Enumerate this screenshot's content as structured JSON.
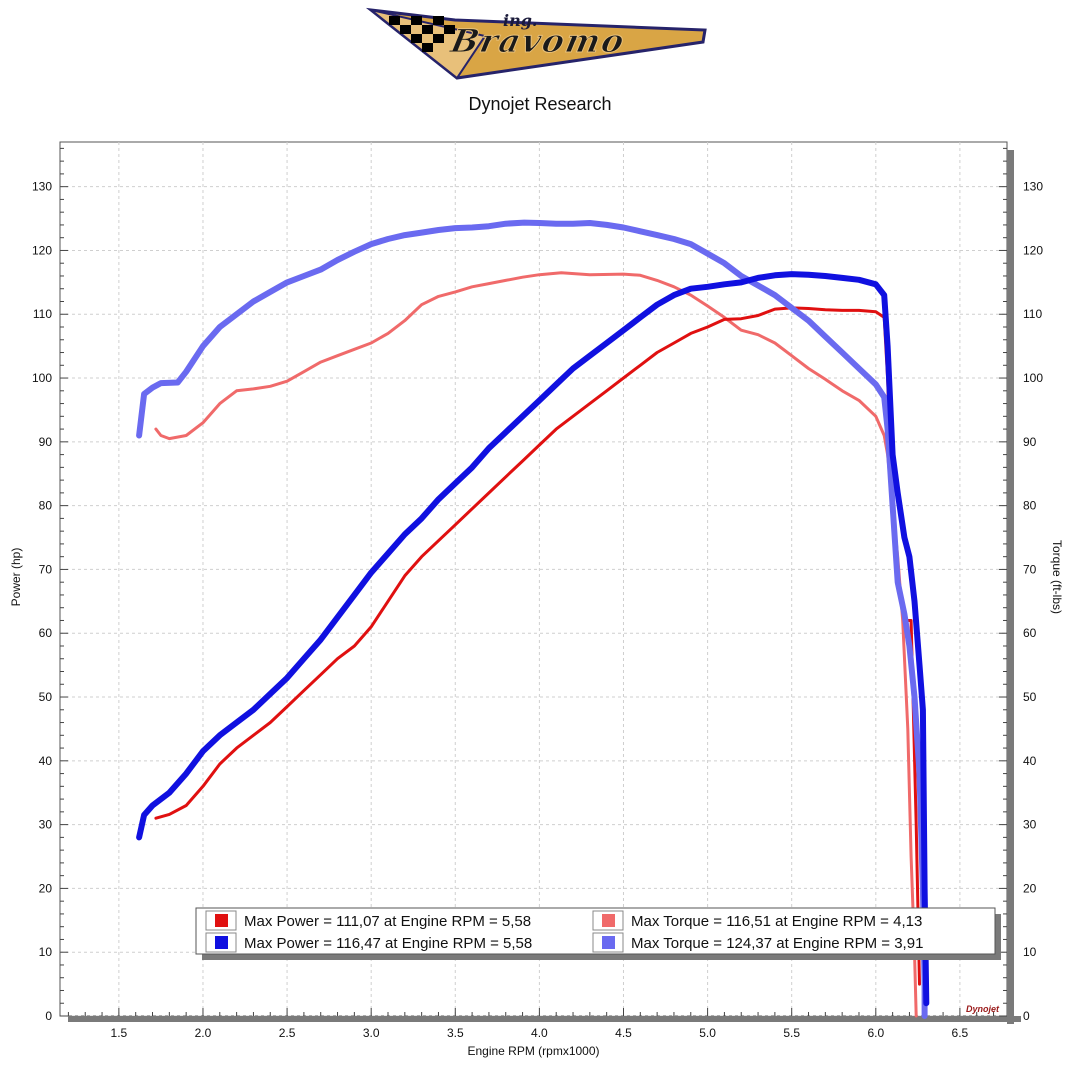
{
  "header": {
    "logo_small": "ing.",
    "logo_main": "Bravomo",
    "title": "Dynojet Research"
  },
  "chart_data": {
    "type": "line",
    "xlabel": "Engine RPM (rpmx1000)",
    "ylabel_left": "Power (hp)",
    "ylabel_right": "Torque (ft-lbs)",
    "xlim": [
      1.15,
      6.78
    ],
    "ylim": [
      0,
      137
    ],
    "xticks": [
      "1.5",
      "2.0",
      "2.5",
      "3.0",
      "3.5",
      "4.0",
      "4.5",
      "5.0",
      "5.5",
      "6.0",
      "6.5"
    ],
    "yticks": [
      "0",
      "10",
      "20",
      "30",
      "40",
      "50",
      "60",
      "70",
      "80",
      "90",
      "100",
      "110",
      "120",
      "130"
    ],
    "grid": true,
    "watermark": "Dynojet",
    "series": [
      {
        "color": "#e01010",
        "width": 3,
        "points": [
          [
            1.72,
            31
          ],
          [
            1.8,
            31.6
          ],
          [
            1.9,
            33
          ],
          [
            2.0,
            36
          ],
          [
            2.1,
            39.5
          ],
          [
            2.2,
            42
          ],
          [
            2.3,
            44
          ],
          [
            2.4,
            46
          ],
          [
            2.5,
            48.5
          ],
          [
            2.6,
            51
          ],
          [
            2.7,
            53.5
          ],
          [
            2.8,
            56
          ],
          [
            2.9,
            58
          ],
          [
            3.0,
            61
          ],
          [
            3.1,
            65
          ],
          [
            3.2,
            69
          ],
          [
            3.3,
            72
          ],
          [
            3.4,
            74.5
          ],
          [
            3.5,
            77
          ],
          [
            3.6,
            79.5
          ],
          [
            3.7,
            82
          ],
          [
            3.8,
            84.5
          ],
          [
            3.9,
            87
          ],
          [
            4.0,
            89.5
          ],
          [
            4.1,
            92
          ],
          [
            4.2,
            94
          ],
          [
            4.3,
            96
          ],
          [
            4.4,
            98
          ],
          [
            4.5,
            100
          ],
          [
            4.6,
            102
          ],
          [
            4.7,
            104
          ],
          [
            4.8,
            105.5
          ],
          [
            4.9,
            107
          ],
          [
            5.0,
            108
          ],
          [
            5.1,
            109.2
          ],
          [
            5.2,
            109.3
          ],
          [
            5.3,
            109.8
          ],
          [
            5.4,
            110.8
          ],
          [
            5.5,
            111
          ],
          [
            5.6,
            110.9
          ],
          [
            5.7,
            110.7
          ],
          [
            5.8,
            110.6
          ],
          [
            5.9,
            110.6
          ],
          [
            6.0,
            110.4
          ],
          [
            6.05,
            109.5
          ],
          [
            6.07,
            100
          ],
          [
            6.09,
            85
          ],
          [
            6.12,
            70
          ],
          [
            6.18,
            62
          ],
          [
            6.21,
            62
          ],
          [
            6.24,
            30
          ],
          [
            6.26,
            5
          ]
        ]
      },
      {
        "color": "#1010e0",
        "width": 6,
        "points": [
          [
            1.62,
            28
          ],
          [
            1.65,
            31.5
          ],
          [
            1.7,
            33
          ],
          [
            1.8,
            35
          ],
          [
            1.9,
            38
          ],
          [
            2.0,
            41.5
          ],
          [
            2.1,
            44
          ],
          [
            2.2,
            46
          ],
          [
            2.3,
            48
          ],
          [
            2.4,
            50.5
          ],
          [
            2.5,
            53
          ],
          [
            2.6,
            56
          ],
          [
            2.7,
            59
          ],
          [
            2.8,
            62.5
          ],
          [
            2.9,
            66
          ],
          [
            3.0,
            69.5
          ],
          [
            3.1,
            72.5
          ],
          [
            3.2,
            75.5
          ],
          [
            3.3,
            78
          ],
          [
            3.4,
            81
          ],
          [
            3.5,
            83.5
          ],
          [
            3.6,
            86
          ],
          [
            3.7,
            89
          ],
          [
            3.8,
            91.5
          ],
          [
            3.9,
            94
          ],
          [
            4.0,
            96.5
          ],
          [
            4.1,
            99
          ],
          [
            4.2,
            101.5
          ],
          [
            4.3,
            103.5
          ],
          [
            4.4,
            105.5
          ],
          [
            4.5,
            107.5
          ],
          [
            4.6,
            109.5
          ],
          [
            4.7,
            111.5
          ],
          [
            4.8,
            113
          ],
          [
            4.9,
            114
          ],
          [
            5.0,
            114.3
          ],
          [
            5.1,
            114.7
          ],
          [
            5.2,
            115
          ],
          [
            5.3,
            115.7
          ],
          [
            5.4,
            116.1
          ],
          [
            5.5,
            116.3
          ],
          [
            5.6,
            116.2
          ],
          [
            5.7,
            116
          ],
          [
            5.8,
            115.7
          ],
          [
            5.9,
            115.4
          ],
          [
            6.0,
            114.7
          ],
          [
            6.05,
            113
          ],
          [
            6.07,
            105
          ],
          [
            6.1,
            88
          ],
          [
            6.13,
            82
          ],
          [
            6.17,
            75
          ],
          [
            6.2,
            72
          ],
          [
            6.23,
            65
          ],
          [
            6.26,
            55
          ],
          [
            6.28,
            48
          ],
          [
            6.29,
            20
          ],
          [
            6.3,
            2
          ]
        ]
      },
      {
        "color": "#f06a6a",
        "width": 3,
        "points": [
          [
            1.72,
            92
          ],
          [
            1.75,
            91
          ],
          [
            1.8,
            90.5
          ],
          [
            1.9,
            91
          ],
          [
            2.0,
            93
          ],
          [
            2.1,
            96
          ],
          [
            2.2,
            98
          ],
          [
            2.3,
            98.3
          ],
          [
            2.4,
            98.7
          ],
          [
            2.5,
            99.5
          ],
          [
            2.6,
            101
          ],
          [
            2.7,
            102.5
          ],
          [
            2.8,
            103.5
          ],
          [
            2.9,
            104.5
          ],
          [
            3.0,
            105.5
          ],
          [
            3.1,
            107
          ],
          [
            3.2,
            109
          ],
          [
            3.3,
            111.5
          ],
          [
            3.4,
            112.8
          ],
          [
            3.5,
            113.5
          ],
          [
            3.6,
            114.3
          ],
          [
            3.7,
            114.8
          ],
          [
            3.8,
            115.3
          ],
          [
            3.9,
            115.8
          ],
          [
            4.0,
            116.2
          ],
          [
            4.13,
            116.5
          ],
          [
            4.3,
            116.2
          ],
          [
            4.5,
            116.3
          ],
          [
            4.6,
            116.1
          ],
          [
            4.7,
            115.3
          ],
          [
            4.8,
            114.3
          ],
          [
            4.9,
            113
          ],
          [
            5.0,
            111.3
          ],
          [
            5.1,
            109.5
          ],
          [
            5.2,
            107.5
          ],
          [
            5.3,
            106.8
          ],
          [
            5.4,
            105.5
          ],
          [
            5.5,
            103.5
          ],
          [
            5.6,
            101.5
          ],
          [
            5.7,
            99.8
          ],
          [
            5.8,
            98
          ],
          [
            5.9,
            96.5
          ],
          [
            6.0,
            94
          ],
          [
            6.05,
            91
          ],
          [
            6.07,
            88
          ],
          [
            6.1,
            80
          ],
          [
            6.13,
            72
          ],
          [
            6.16,
            62
          ],
          [
            6.19,
            45
          ],
          [
            6.21,
            25
          ],
          [
            6.23,
            10
          ],
          [
            6.24,
            0
          ]
        ]
      },
      {
        "color": "#6a6af0",
        "width": 6,
        "points": [
          [
            1.62,
            91
          ],
          [
            1.65,
            97.5
          ],
          [
            1.7,
            98.5
          ],
          [
            1.75,
            99.2
          ],
          [
            1.85,
            99.3
          ],
          [
            1.9,
            101
          ],
          [
            2.0,
            105
          ],
          [
            2.1,
            108
          ],
          [
            2.2,
            110
          ],
          [
            2.3,
            112
          ],
          [
            2.4,
            113.5
          ],
          [
            2.5,
            115
          ],
          [
            2.6,
            116
          ],
          [
            2.7,
            117
          ],
          [
            2.8,
            118.5
          ],
          [
            2.9,
            119.8
          ],
          [
            3.0,
            121
          ],
          [
            3.1,
            121.8
          ],
          [
            3.2,
            122.4
          ],
          [
            3.3,
            122.8
          ],
          [
            3.4,
            123.2
          ],
          [
            3.5,
            123.5
          ],
          [
            3.6,
            123.6
          ],
          [
            3.7,
            123.8
          ],
          [
            3.8,
            124.2
          ],
          [
            3.91,
            124.37
          ],
          [
            4.0,
            124.3
          ],
          [
            4.1,
            124.2
          ],
          [
            4.2,
            124.2
          ],
          [
            4.3,
            124.3
          ],
          [
            4.4,
            124
          ],
          [
            4.5,
            123.6
          ],
          [
            4.6,
            123
          ],
          [
            4.7,
            122.4
          ],
          [
            4.8,
            121.8
          ],
          [
            4.9,
            121
          ],
          [
            5.0,
            119.5
          ],
          [
            5.1,
            118
          ],
          [
            5.2,
            116
          ],
          [
            5.3,
            114.5
          ],
          [
            5.4,
            113
          ],
          [
            5.5,
            111
          ],
          [
            5.6,
            109
          ],
          [
            5.7,
            106.5
          ],
          [
            5.8,
            104
          ],
          [
            5.9,
            101.5
          ],
          [
            6.0,
            99
          ],
          [
            6.05,
            97
          ],
          [
            6.07,
            92
          ],
          [
            6.1,
            80
          ],
          [
            6.13,
            68
          ],
          [
            6.17,
            63
          ],
          [
            6.2,
            58
          ],
          [
            6.23,
            50
          ],
          [
            6.26,
            38
          ],
          [
            6.28,
            20
          ],
          [
            6.29,
            5
          ],
          [
            6.29,
            0
          ]
        ]
      }
    ],
    "legend": {
      "position": "bottom-right",
      "entries": [
        {
          "color": "#e01010",
          "text": "Max Power = 111,07 at Engine RPM = 5,58"
        },
        {
          "color": "#f06a6a",
          "text": "Max Torque = 116,51 at Engine RPM = 4,13"
        },
        {
          "color": "#1010e0",
          "text": "Max Power = 116,47 at Engine RPM = 5,58"
        },
        {
          "color": "#6a6af0",
          "text": "Max Torque = 124,37 at Engine RPM = 3,91"
        }
      ]
    }
  }
}
